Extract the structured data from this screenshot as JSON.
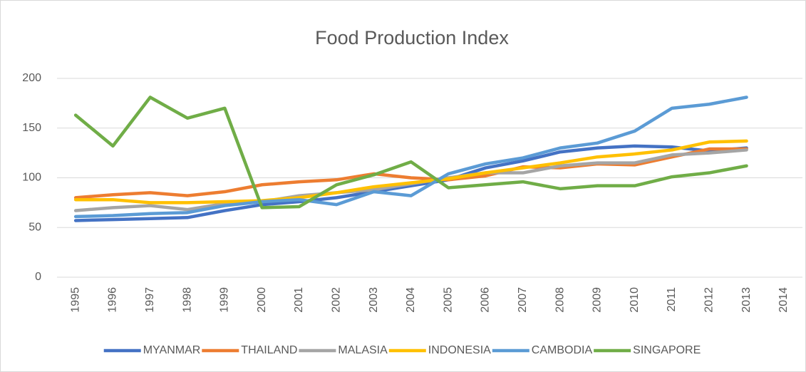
{
  "chart_data": {
    "type": "line",
    "title": "Food Production Index",
    "categories": [
      "1995",
      "1996",
      "1997",
      "1998",
      "1999",
      "2000",
      "2001",
      "2002",
      "2003",
      "2004",
      "2005",
      "2006",
      "2007",
      "2008",
      "2009",
      "2010",
      "2011",
      "2012",
      "2013",
      "2014"
    ],
    "ylim": [
      0,
      200
    ],
    "yticks": [
      0,
      50,
      100,
      150,
      200
    ],
    "grid": true,
    "legend": "bottom",
    "series": [
      {
        "name": "MYANMAR",
        "color": "#4472C4",
        "values": [
          57,
          58,
          59,
          60,
          67,
          73,
          76,
          80,
          86,
          92,
          98,
          110,
          117,
          126,
          130,
          132,
          131,
          127,
          130,
          null
        ]
      },
      {
        "name": "THAILAND",
        "color": "#ED7D31",
        "values": [
          80,
          83,
          85,
          82,
          86,
          93,
          96,
          98,
          104,
          100,
          98,
          102,
          111,
          110,
          114,
          113,
          121,
          129,
          129,
          null
        ]
      },
      {
        "name": "MALASIA",
        "color": "#A5A5A5",
        "values": [
          67,
          70,
          72,
          68,
          74,
          76,
          82,
          85,
          88,
          94,
          100,
          105,
          105,
          112,
          115,
          115,
          123,
          125,
          128,
          null
        ]
      },
      {
        "name": "INDONESIA",
        "color": "#FFC000",
        "values": [
          78,
          78,
          75,
          75,
          76,
          77,
          80,
          85,
          91,
          95,
          99,
          105,
          110,
          115,
          121,
          124,
          128,
          136,
          137,
          null
        ]
      },
      {
        "name": "CAMBODIA",
        "color": "#5B9BD5",
        "values": [
          61,
          62,
          64,
          65,
          72,
          76,
          78,
          73,
          86,
          82,
          104,
          114,
          120,
          130,
          135,
          147,
          170,
          174,
          181,
          null
        ]
      },
      {
        "name": "SINGAPORE",
        "color": "#70AD47",
        "values": [
          163,
          132,
          181,
          160,
          170,
          70,
          71,
          93,
          103,
          116,
          90,
          93,
          96,
          89,
          92,
          92,
          101,
          105,
          112,
          null
        ]
      }
    ]
  }
}
